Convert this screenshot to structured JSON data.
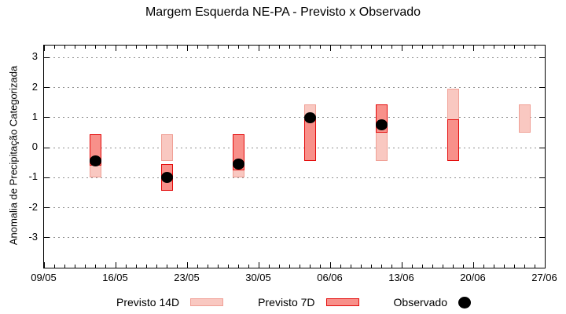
{
  "chart_data": {
    "type": "bar",
    "title": "Margem Esquerda NE-PA - Previsto x Observado",
    "ylabel": "Anomalia de Precipitação Categorizada",
    "x_tick_labels": [
      "09/05",
      "16/05",
      "23/05",
      "30/05",
      "06/06",
      "13/06",
      "20/06",
      "27/06"
    ],
    "x_tick_interval_days": 7,
    "x_range_days": 49,
    "y_ticks": [
      3,
      2,
      1,
      0,
      -1,
      -2,
      -3
    ],
    "ylim": [
      -4.0,
      3.4
    ],
    "grid": "dotted horizontal at integer y values",
    "legend_position": "bottom center",
    "legend": {
      "previsto14_label": "Previsto 14D",
      "previsto7_label": "Previsto 7D",
      "observado_label": "Observado"
    },
    "groups": [
      {
        "day_offset": 5,
        "previsto_14d": [
          0.45,
          -1.0
        ],
        "previsto_7d": [
          0.45,
          -0.6
        ],
        "observado": -0.45
      },
      {
        "day_offset": 12,
        "previsto_14d": [
          0.45,
          -0.45
        ],
        "previsto_7d": [
          -0.55,
          -1.45
        ],
        "observado": -1.0
      },
      {
        "day_offset": 19,
        "previsto_14d": [
          0.45,
          -1.0
        ],
        "previsto_7d": [
          0.45,
          -0.75
        ],
        "observado": -0.55
      },
      {
        "day_offset": 26,
        "previsto_14d": [
          1.45,
          -0.45
        ],
        "previsto_7d": [
          0.95,
          -0.45
        ],
        "observado": 1.0
      },
      {
        "day_offset": 33,
        "previsto_14d": [
          1.45,
          -0.45
        ],
        "previsto_7d": [
          1.45,
          0.5
        ],
        "observado": 0.75
      },
      {
        "day_offset": 40,
        "previsto_14d": [
          1.95,
          -0.45
        ],
        "previsto_7d": [
          0.95,
          -0.45
        ],
        "observado": null
      },
      {
        "day_offset": 47,
        "previsto_14d": [
          1.45,
          0.5
        ],
        "previsto_7d": null,
        "observado": null
      }
    ],
    "colors": {
      "previsto_14d_fill": "#f9c8c1",
      "previsto_14d_border": "#f0a096",
      "previsto_7d_fill": "#f8908a",
      "previsto_7d_border": "#e30b0b",
      "observado": "#000000",
      "grid": "#909090",
      "axis": "#000000",
      "background": "#ffffff"
    }
  }
}
